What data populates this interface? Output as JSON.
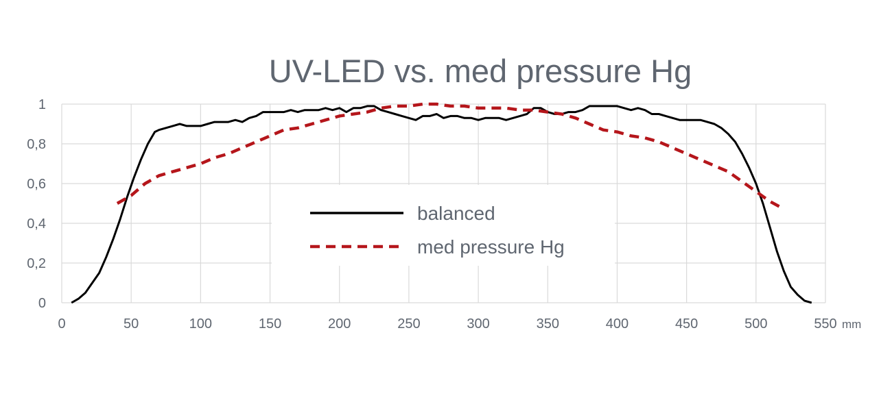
{
  "chart_data": {
    "type": "line",
    "title": "UV-LED vs. med pressure Hg",
    "xlabel": "mm",
    "ylabel": "",
    "xlim": [
      0,
      550
    ],
    "ylim": [
      0,
      1
    ],
    "x_ticks": [
      "0",
      "50",
      "100",
      "150",
      "200",
      "250",
      "300",
      "350",
      "400",
      "450",
      "500",
      "550"
    ],
    "y_ticks": [
      "0",
      "0,2",
      "0,4",
      "0,6",
      "0,8",
      "1"
    ],
    "grid": true,
    "legend_position": "center",
    "series": [
      {
        "name": "balanced",
        "color": "#000000",
        "style": "solid",
        "x": [
          7,
          12,
          17,
          22,
          27,
          32,
          37,
          42,
          47,
          52,
          57,
          62,
          67,
          70,
          75,
          80,
          85,
          90,
          95,
          100,
          105,
          110,
          115,
          120,
          125,
          130,
          135,
          140,
          145,
          150,
          155,
          160,
          165,
          170,
          175,
          180,
          185,
          190,
          195,
          200,
          205,
          210,
          215,
          220,
          225,
          230,
          235,
          240,
          245,
          250,
          255,
          260,
          265,
          270,
          275,
          280,
          285,
          290,
          295,
          300,
          305,
          310,
          315,
          320,
          325,
          330,
          335,
          340,
          345,
          350,
          355,
          360,
          365,
          370,
          375,
          380,
          385,
          390,
          395,
          400,
          405,
          410,
          415,
          420,
          425,
          430,
          435,
          440,
          445,
          450,
          455,
          460,
          465,
          470,
          475,
          480,
          485,
          490,
          495,
          500,
          505,
          510,
          515,
          520,
          525,
          530,
          535,
          540
        ],
        "y": [
          0.0,
          0.02,
          0.05,
          0.1,
          0.15,
          0.23,
          0.32,
          0.42,
          0.53,
          0.63,
          0.72,
          0.8,
          0.86,
          0.87,
          0.88,
          0.89,
          0.9,
          0.89,
          0.89,
          0.89,
          0.9,
          0.91,
          0.91,
          0.91,
          0.92,
          0.91,
          0.93,
          0.94,
          0.96,
          0.96,
          0.96,
          0.96,
          0.97,
          0.96,
          0.97,
          0.97,
          0.97,
          0.98,
          0.97,
          0.98,
          0.96,
          0.98,
          0.98,
          0.99,
          0.99,
          0.97,
          0.96,
          0.95,
          0.94,
          0.93,
          0.92,
          0.94,
          0.94,
          0.95,
          0.93,
          0.94,
          0.94,
          0.93,
          0.93,
          0.92,
          0.93,
          0.93,
          0.93,
          0.92,
          0.93,
          0.94,
          0.95,
          0.98,
          0.98,
          0.96,
          0.95,
          0.95,
          0.96,
          0.96,
          0.97,
          0.99,
          0.99,
          0.99,
          0.99,
          0.99,
          0.98,
          0.97,
          0.98,
          0.97,
          0.95,
          0.95,
          0.94,
          0.93,
          0.92,
          0.92,
          0.92,
          0.92,
          0.91,
          0.9,
          0.88,
          0.85,
          0.81,
          0.75,
          0.68,
          0.6,
          0.5,
          0.38,
          0.26,
          0.16,
          0.08,
          0.04,
          0.01,
          0.0
        ]
      },
      {
        "name": "med pressure Hg",
        "color": "#b5161b",
        "style": "dashed",
        "x": [
          40,
          50,
          60,
          70,
          80,
          90,
          100,
          110,
          120,
          130,
          140,
          150,
          160,
          170,
          180,
          190,
          200,
          210,
          220,
          230,
          240,
          250,
          260,
          270,
          280,
          290,
          300,
          310,
          320,
          330,
          340,
          350,
          360,
          370,
          380,
          390,
          400,
          410,
          420,
          430,
          440,
          450,
          460,
          470,
          480,
          490,
          500,
          510,
          518
        ],
        "y": [
          0.5,
          0.54,
          0.6,
          0.64,
          0.66,
          0.68,
          0.7,
          0.73,
          0.75,
          0.78,
          0.81,
          0.84,
          0.87,
          0.88,
          0.9,
          0.92,
          0.94,
          0.95,
          0.96,
          0.98,
          0.99,
          0.99,
          1.0,
          1.0,
          0.99,
          0.99,
          0.98,
          0.98,
          0.98,
          0.97,
          0.97,
          0.96,
          0.95,
          0.93,
          0.9,
          0.87,
          0.86,
          0.84,
          0.83,
          0.81,
          0.78,
          0.75,
          0.72,
          0.69,
          0.66,
          0.61,
          0.56,
          0.51,
          0.48
        ]
      }
    ]
  }
}
